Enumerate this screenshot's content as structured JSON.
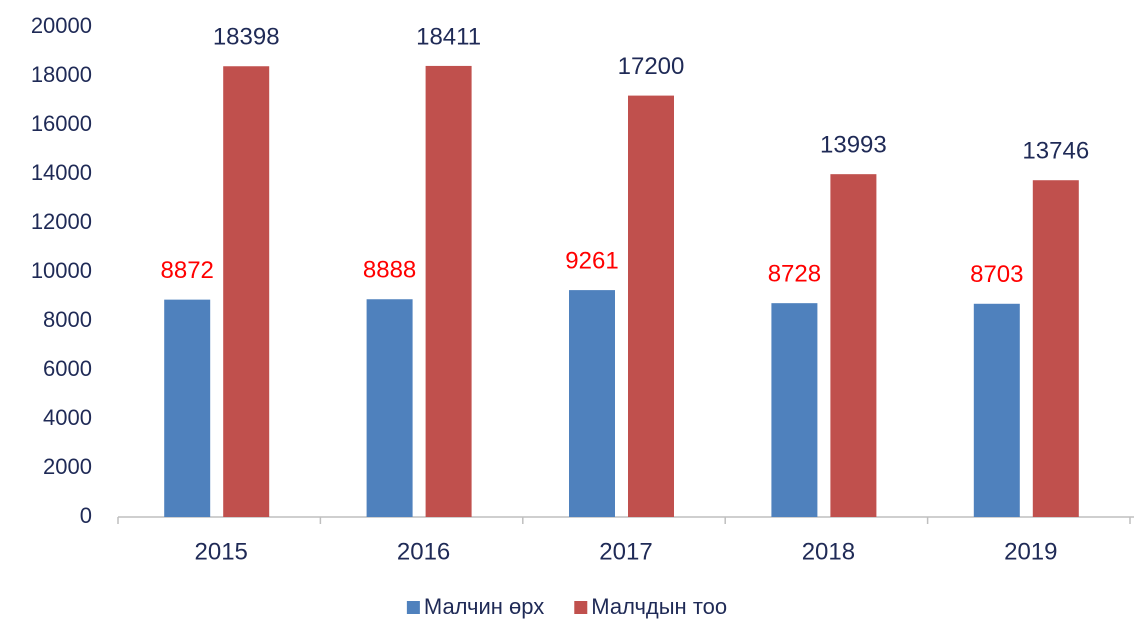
{
  "chart_data": {
    "type": "bar",
    "categories": [
      "2015",
      "2016",
      "2017",
      "2018",
      "2019"
    ],
    "series": [
      {
        "name": "Малчин өрх",
        "color": "#4f81bd",
        "label_color": "#ff0000",
        "values": [
          8872,
          8888,
          9261,
          8728,
          8703
        ]
      },
      {
        "name": "Малчдын тоо",
        "color": "#c0504d",
        "label_color": "#1f2a56",
        "values": [
          18398,
          18411,
          17200,
          13993,
          13746
        ]
      }
    ],
    "ylim": [
      0,
      20000
    ],
    "yticks": [
      0,
      2000,
      4000,
      6000,
      8000,
      10000,
      12000,
      14000,
      16000,
      18000,
      20000
    ],
    "grid": false,
    "legend": "bottom"
  }
}
